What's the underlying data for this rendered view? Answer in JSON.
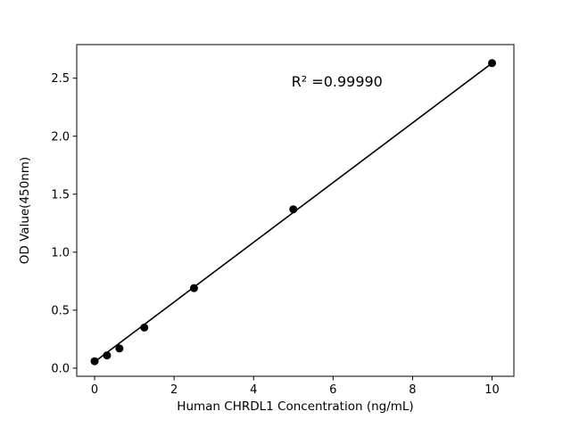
{
  "chart_data": {
    "type": "scatter",
    "title": "",
    "xlabel": "Human CHRDL1 Concentration (ng/mL)",
    "ylabel": "OD Value(450nm)",
    "annotation": "R² =0.99990",
    "annotation_pos": {
      "x": 6.1,
      "y": 2.43
    },
    "x": [
      0,
      0.3125,
      0.625,
      1.25,
      2.5,
      5,
      10
    ],
    "y": [
      0.06,
      0.11,
      0.17,
      0.35,
      0.69,
      1.37,
      2.63
    ],
    "fit_line": {
      "x": [
        0,
        10
      ],
      "y": [
        0.055,
        2.63
      ]
    },
    "x_ticks": [
      0,
      2,
      4,
      6,
      8,
      10
    ],
    "y_ticks": [
      0.0,
      0.5,
      1.0,
      1.5,
      2.0,
      2.5
    ],
    "xlim": [
      -0.45,
      10.55
    ],
    "ylim": [
      -0.07,
      2.79
    ],
    "grid": false,
    "legend": "none",
    "marker_color": "#000000",
    "line_color": "#000000",
    "axis_color": "#000000",
    "background": "#ffffff"
  }
}
